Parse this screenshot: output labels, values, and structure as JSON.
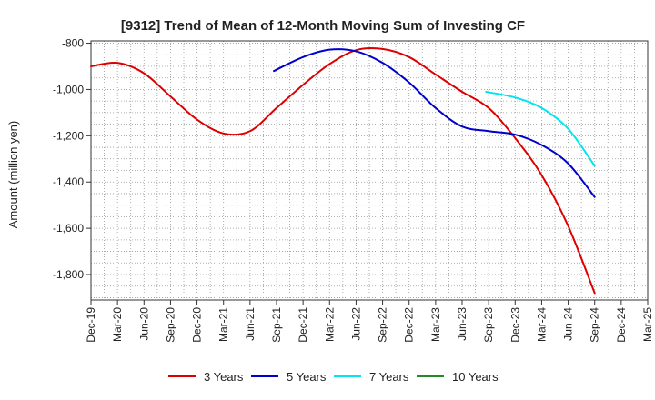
{
  "chart_data": {
    "type": "line",
    "title": "[9312]  Trend of Mean of 12-Month Moving Sum of Investing CF",
    "xlabel": "",
    "ylabel": "Amount (million yen)",
    "ylim": [
      -1910,
      -790
    ],
    "yticks": [
      -800,
      -1000,
      -1200,
      -1400,
      -1600,
      -1800
    ],
    "ytick_labels": [
      "-800",
      "-1,000",
      "-1,200",
      "-1,400",
      "-1,600",
      "-1,800"
    ],
    "x_tick_labels": [
      "Dec-19",
      "Mar-20",
      "Jun-20",
      "Sep-20",
      "Dec-20",
      "Mar-21",
      "Jun-21",
      "Sep-21",
      "Dec-21",
      "Mar-22",
      "Jun-22",
      "Sep-22",
      "Dec-22",
      "Mar-23",
      "Jun-23",
      "Sep-23",
      "Dec-23",
      "Mar-24",
      "Jun-24",
      "Sep-24",
      "Dec-24",
      "Mar-25"
    ],
    "x_unit": "quarter index from Dec-19",
    "grid": true,
    "legend_position": "bottom",
    "series": [
      {
        "name": "3 Years",
        "color": "#dd0000",
        "x": [
          0,
          1,
          2,
          3,
          4,
          5,
          6,
          7,
          8,
          9,
          10,
          11,
          12,
          13,
          14,
          15,
          16,
          17,
          18,
          19
        ],
        "values": [
          -900,
          -885,
          -930,
          -1030,
          -1130,
          -1190,
          -1180,
          -1080,
          -980,
          -890,
          -830,
          -825,
          -860,
          -935,
          -1010,
          -1080,
          -1210,
          -1370,
          -1590,
          -1880
        ]
      },
      {
        "name": "5 Years",
        "color": "#0000cc",
        "x": [
          6.9,
          8,
          9,
          10,
          11,
          12,
          13,
          14,
          15,
          16,
          17,
          18,
          19
        ],
        "values": [
          -920,
          -860,
          -828,
          -835,
          -885,
          -970,
          -1080,
          -1160,
          -1180,
          -1195,
          -1240,
          -1320,
          -1465
        ]
      },
      {
        "name": "7 Years",
        "color": "#00e5ee",
        "x": [
          14.9,
          16,
          17,
          18,
          19
        ],
        "values": [
          -1010,
          -1035,
          -1080,
          -1170,
          -1330
        ]
      },
      {
        "name": "10 Years",
        "color": "#228b22",
        "x": [],
        "values": []
      }
    ]
  }
}
